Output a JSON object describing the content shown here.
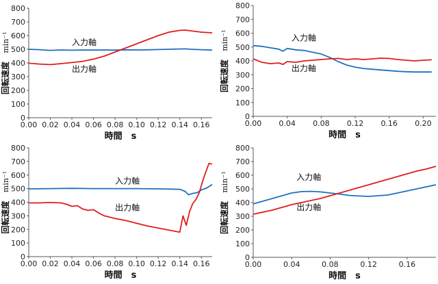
{
  "chart_data": [
    {
      "type": "line",
      "xlabel": "時間　s",
      "ylabel": "回転速度",
      "yunit": "min⁻¹",
      "xlim": [
        0,
        0.17
      ],
      "ylim": [
        0,
        800
      ],
      "xticks": [
        "0.00",
        "0.02",
        "0.04",
        "0.06",
        "0.08",
        "0.10",
        "0.12",
        "0.14",
        "0.16"
      ],
      "yticks": [
        "0",
        "100",
        "200",
        "300",
        "400",
        "500",
        "600",
        "700",
        "800"
      ],
      "grid": false,
      "series": [
        {
          "name": "入力軸",
          "color": "#1f6fbf",
          "x": [
            0,
            0.01,
            0.02,
            0.03,
            0.04,
            0.05,
            0.06,
            0.07,
            0.08,
            0.09,
            0.1,
            0.11,
            0.12,
            0.13,
            0.14,
            0.145,
            0.15,
            0.16,
            0.17
          ],
          "y": [
            500,
            497,
            492,
            495,
            493,
            495,
            494,
            495,
            494,
            496,
            495,
            496,
            498,
            500,
            502,
            503,
            500,
            497,
            494
          ]
        },
        {
          "name": "出力軸",
          "color": "#e01b1b",
          "x": [
            0,
            0.01,
            0.02,
            0.03,
            0.04,
            0.05,
            0.06,
            0.07,
            0.08,
            0.09,
            0.1,
            0.11,
            0.12,
            0.13,
            0.14,
            0.145,
            0.15,
            0.16,
            0.17
          ],
          "y": [
            398,
            392,
            388,
            395,
            403,
            412,
            428,
            450,
            480,
            510,
            540,
            570,
            600,
            625,
            638,
            640,
            635,
            625,
            620
          ]
        }
      ],
      "labels": [
        {
          "text": "入力軸",
          "x": 0.04,
          "y": 530
        },
        {
          "text": "出力軸",
          "x": 0.04,
          "y": 335
        }
      ]
    },
    {
      "type": "line",
      "xlabel": "時間　s",
      "ylabel": "回転速度",
      "yunit": "min⁻¹",
      "xlim": [
        0,
        0.215
      ],
      "ylim": [
        0,
        800
      ],
      "xticks": [
        "0.00",
        "0.04",
        "0.08",
        "0.12",
        "0.16",
        "0.20"
      ],
      "yticks": [
        "0",
        "100",
        "200",
        "300",
        "400",
        "500",
        "600",
        "700",
        "800"
      ],
      "grid": false,
      "series": [
        {
          "name": "入力軸",
          "color": "#1f6fbf",
          "x": [
            0,
            0.01,
            0.02,
            0.03,
            0.035,
            0.04,
            0.05,
            0.06,
            0.07,
            0.08,
            0.09,
            0.1,
            0.11,
            0.12,
            0.13,
            0.14,
            0.15,
            0.16,
            0.17,
            0.18,
            0.19,
            0.2,
            0.21
          ],
          "y": [
            510,
            505,
            495,
            485,
            470,
            490,
            480,
            475,
            462,
            450,
            425,
            395,
            370,
            355,
            345,
            340,
            335,
            330,
            325,
            322,
            320,
            320,
            320
          ]
        },
        {
          "name": "出力軸",
          "color": "#e01b1b",
          "x": [
            0,
            0.01,
            0.02,
            0.03,
            0.035,
            0.04,
            0.05,
            0.06,
            0.07,
            0.08,
            0.09,
            0.1,
            0.11,
            0.12,
            0.13,
            0.14,
            0.15,
            0.16,
            0.17,
            0.18,
            0.19,
            0.2,
            0.21
          ],
          "y": [
            415,
            390,
            380,
            385,
            375,
            395,
            390,
            400,
            405,
            410,
            415,
            418,
            410,
            415,
            410,
            415,
            420,
            418,
            410,
            405,
            400,
            405,
            408
          ]
        }
      ],
      "labels": [
        {
          "text": "入力軸",
          "x": 0.045,
          "y": 545
        },
        {
          "text": "出力軸",
          "x": 0.045,
          "y": 325
        }
      ]
    },
    {
      "type": "line",
      "xlabel": "時間　s",
      "ylabel": "回転速度",
      "yunit": "min⁻¹",
      "xlim": [
        0,
        0.17
      ],
      "ylim": [
        0,
        800
      ],
      "xticks": [
        "0.00",
        "0.02",
        "0.04",
        "0.06",
        "0.08",
        "0.10",
        "0.12",
        "0.14",
        "0.16"
      ],
      "yticks": [
        "0",
        "100",
        "200",
        "300",
        "400",
        "500",
        "600",
        "700",
        "800"
      ],
      "grid": false,
      "series": [
        {
          "name": "入力軸",
          "color": "#1f6fbf",
          "x": [
            0,
            0.02,
            0.04,
            0.06,
            0.08,
            0.1,
            0.12,
            0.14,
            0.145,
            0.148,
            0.152,
            0.156,
            0.16,
            0.165,
            0.17
          ],
          "y": [
            498,
            500,
            502,
            500,
            500,
            500,
            498,
            495,
            480,
            455,
            465,
            470,
            490,
            505,
            530
          ]
        },
        {
          "name": "出力軸",
          "color": "#e01b1b",
          "x": [
            0,
            0.01,
            0.02,
            0.03,
            0.035,
            0.04,
            0.045,
            0.05,
            0.055,
            0.06,
            0.065,
            0.07,
            0.08,
            0.09,
            0.1,
            0.11,
            0.12,
            0.13,
            0.14,
            0.143,
            0.146,
            0.149,
            0.152,
            0.155,
            0.158,
            0.161,
            0.164,
            0.167,
            0.17
          ],
          "y": [
            395,
            395,
            398,
            395,
            385,
            370,
            375,
            350,
            340,
            345,
            320,
            300,
            280,
            265,
            245,
            225,
            210,
            195,
            180,
            300,
            230,
            330,
            390,
            420,
            470,
            550,
            620,
            685,
            680
          ]
        }
      ],
      "labels": [
        {
          "text": "入力軸",
          "x": 0.08,
          "y": 535
        },
        {
          "text": "出力軸",
          "x": 0.08,
          "y": 340
        }
      ]
    },
    {
      "type": "line",
      "xlabel": "時間　s",
      "ylabel": "回転速度",
      "yunit": "min⁻¹",
      "xlim": [
        0,
        0.19
      ],
      "ylim": [
        0,
        800
      ],
      "xticks": [
        "0.00",
        "0.04",
        "0.08",
        "0.12",
        "0.16"
      ],
      "yticks": [
        "0",
        "100",
        "200",
        "300",
        "400",
        "500",
        "600",
        "700",
        "800"
      ],
      "grid": false,
      "series": [
        {
          "name": "入力軸",
          "color": "#1f6fbf",
          "x": [
            0,
            0.01,
            0.02,
            0.03,
            0.04,
            0.05,
            0.06,
            0.07,
            0.08,
            0.09,
            0.1,
            0.11,
            0.12,
            0.13,
            0.14,
            0.15,
            0.16,
            0.17,
            0.18,
            0.19
          ],
          "y": [
            390,
            410,
            430,
            450,
            470,
            480,
            482,
            478,
            470,
            462,
            452,
            448,
            445,
            450,
            455,
            470,
            485,
            500,
            515,
            530
          ]
        },
        {
          "name": "出力軸",
          "color": "#e01b1b",
          "x": [
            0,
            0.01,
            0.02,
            0.03,
            0.04,
            0.05,
            0.06,
            0.07,
            0.08,
            0.09,
            0.1,
            0.11,
            0.12,
            0.13,
            0.14,
            0.15,
            0.16,
            0.17,
            0.18,
            0.19
          ],
          "y": [
            315,
            330,
            345,
            365,
            385,
            400,
            415,
            430,
            450,
            470,
            490,
            510,
            530,
            550,
            570,
            590,
            610,
            630,
            645,
            665
          ]
        }
      ],
      "labels": [
        {
          "text": "入力軸",
          "x": 0.045,
          "y": 565
        },
        {
          "text": "出力軸",
          "x": 0.045,
          "y": 345
        }
      ]
    }
  ]
}
